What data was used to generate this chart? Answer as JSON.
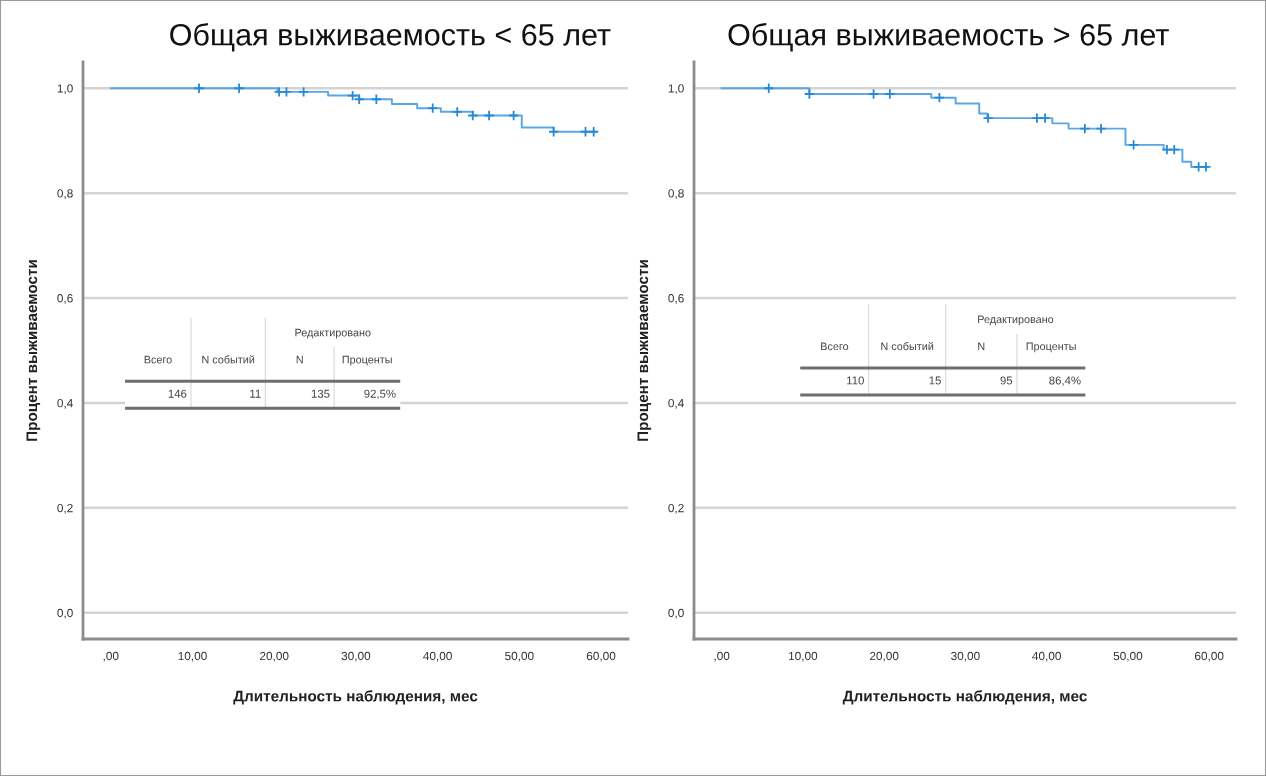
{
  "chart_data": [
    {
      "type": "step",
      "title": "Общая выживаемость < 65 лет",
      "xlabel": "Длительность наблюдения, мес",
      "ylabel": "Процент выживаемости",
      "series": [
        {
          "color": "#5aa7e6",
          "x": [
            0,
            20.4,
            26.6,
            30.4,
            34.4,
            37.5,
            40.4,
            44.3,
            50.3,
            54.2,
            59.3
          ],
          "values": [
            1.0,
            0.993,
            0.986,
            0.979,
            0.97,
            0.962,
            0.955,
            0.948,
            0.925,
            0.917,
            0.917
          ]
        },
        {
          "type": "scatter",
          "color": "#2589d6",
          "marker": "cross",
          "x": [
            10.8,
            15.7,
            20.6,
            21.5,
            23.6,
            29.6,
            30.4,
            32.5,
            39.4,
            42.4,
            44.3,
            46.3,
            49.3,
            54.2,
            58.1,
            59.1
          ],
          "values": [
            1.0,
            1.0,
            0.993,
            0.993,
            0.993,
            0.986,
            0.979,
            0.979,
            0.962,
            0.955,
            0.948,
            0.948,
            0.948,
            0.917,
            0.917,
            0.917
          ]
        }
      ],
      "xlim": [
        -3.4,
        63.3
      ],
      "ylim": [
        -0.05,
        1.05
      ],
      "xticks": [
        {
          "value": 0,
          "label": ",00"
        },
        {
          "value": 10,
          "label": "10,00"
        },
        {
          "value": 20,
          "label": "20,00"
        },
        {
          "value": 30,
          "label": "30,00"
        },
        {
          "value": 40,
          "label": "40,00"
        },
        {
          "value": 50,
          "label": "50,00"
        },
        {
          "value": 60,
          "label": "60,00"
        }
      ],
      "yticks": [
        {
          "value": 0,
          "label": "0,0"
        },
        {
          "value": 0.2,
          "label": "0,2"
        },
        {
          "value": 0.4,
          "label": "0,4"
        },
        {
          "value": 0.6,
          "label": "0,6"
        },
        {
          "value": 0.8,
          "label": "0,8"
        },
        {
          "value": 1.0,
          "label": "1,0"
        }
      ],
      "grid": "y",
      "annotations": [
        "Редактировано",
        "Всего",
        "N событий",
        "N",
        "Проценты",
        "146",
        "11",
        "135",
        "92,5%"
      ]
    },
    {
      "type": "step",
      "title": "Общая выживаемость > 65 лет",
      "xlabel": "Длительность наблюдения, мес",
      "ylabel": "Процент выживаемости",
      "series": [
        {
          "color": "#5aa7e6",
          "x": [
            0,
            10.8,
            25.8,
            28.8,
            31.7,
            32.7,
            40.7,
            42.7,
            49.7,
            54.4,
            56.7,
            57.8,
            59.8
          ],
          "values": [
            1.0,
            0.989,
            0.982,
            0.971,
            0.952,
            0.943,
            0.933,
            0.923,
            0.892,
            0.883,
            0.86,
            0.85,
            0.85
          ]
        },
        {
          "type": "scatter",
          "color": "#2589d6",
          "marker": "cross",
          "x": [
            5.8,
            10.8,
            18.7,
            20.7,
            26.8,
            32.8,
            38.8,
            39.8,
            44.7,
            46.7,
            50.7,
            54.8,
            55.7,
            58.7,
            59.6
          ],
          "values": [
            1.0,
            0.989,
            0.989,
            0.989,
            0.982,
            0.943,
            0.943,
            0.943,
            0.923,
            0.923,
            0.892,
            0.883,
            0.883,
            0.85,
            0.85
          ]
        }
      ],
      "xlim": [
        -3.4,
        63.3
      ],
      "ylim": [
        -0.05,
        1.05
      ],
      "xticks": [
        {
          "value": 0,
          "label": ",00"
        },
        {
          "value": 10,
          "label": "10,00"
        },
        {
          "value": 20,
          "label": "20,00"
        },
        {
          "value": 30,
          "label": "30,00"
        },
        {
          "value": 40,
          "label": "40,00"
        },
        {
          "value": 50,
          "label": "50,00"
        },
        {
          "value": 60,
          "label": "60,00"
        }
      ],
      "yticks": [
        {
          "value": 0,
          "label": "0,0"
        },
        {
          "value": 0.2,
          "label": "0,2"
        },
        {
          "value": 0.4,
          "label": "0,4"
        },
        {
          "value": 0.6,
          "label": "0,6"
        },
        {
          "value": 0.8,
          "label": "0,8"
        },
        {
          "value": 1.0,
          "label": "1,0"
        }
      ],
      "grid": "y",
      "annotations": [
        "Редактировано",
        "Всего",
        "N событий",
        "N",
        "Проценты",
        "110",
        "15",
        "95",
        "86,4%"
      ]
    }
  ]
}
